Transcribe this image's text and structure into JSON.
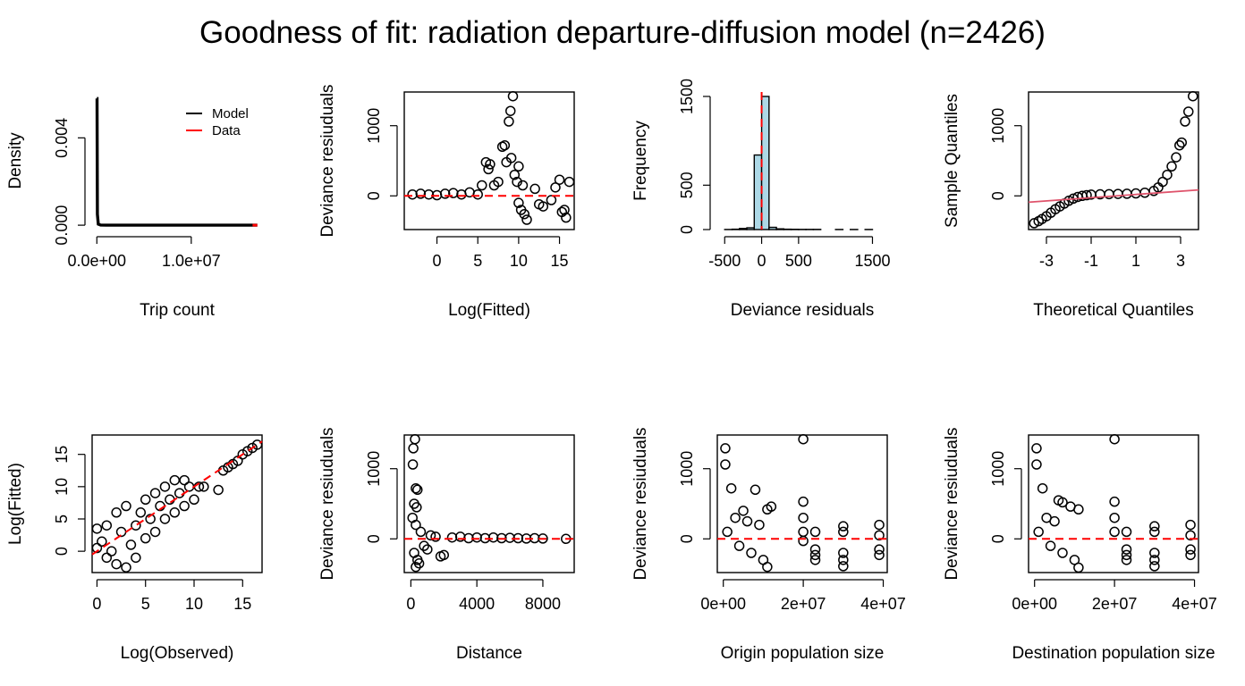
{
  "figure": {
    "title": "Goodness of fit: radiation departure-diffusion model (n=2426)"
  },
  "colors": {
    "ink": "#000000",
    "ref": "#ff0000",
    "hist_fill": "#add8e6",
    "qq_line": "#df536b"
  },
  "chart_data": [
    {
      "id": "density",
      "type": "line",
      "xlabel": "Trip count",
      "ylabel": "Density",
      "xlim": [
        -500000.0,
        17500000.0
      ],
      "ylim": [
        -0.0002,
        0.0061
      ],
      "xticks": [
        {
          "v": 0,
          "label": "0.0e+00"
        },
        {
          "v": 10000000.0,
          "label": "1.0e+07"
        }
      ],
      "yticks": [
        {
          "v": 0,
          "label": "0.000"
        },
        {
          "v": 0.004,
          "label": "0.004"
        }
      ],
      "legend": {
        "position": "top-right",
        "entries": [
          {
            "name": "Model",
            "color": "#000000"
          },
          {
            "name": "Data",
            "color": "#ff0000"
          }
        ]
      },
      "series": [
        {
          "name": "Model",
          "x": [
            0,
            20000,
            60000,
            150000,
            400000,
            1000000,
            17000000
          ],
          "y": [
            0.0058,
            0.0058,
            0.0005,
            5e-05,
            1e-05,
            2e-06,
            5e-07
          ]
        },
        {
          "name": "Data",
          "x": [
            16500000,
            17000000
          ],
          "y": [
            1e-06,
            1e-06
          ]
        }
      ]
    },
    {
      "id": "resid_vs_fitted",
      "type": "scatter",
      "xlabel": "Log(Fitted)",
      "ylabel": "Deviance resiuduals",
      "xlim": [
        -4,
        16.8
      ],
      "ylim": [
        -480,
        1480
      ],
      "xticks": [
        {
          "v": 0,
          "label": "0"
        },
        {
          "v": 5,
          "label": "5"
        },
        {
          "v": 10,
          "label": "10"
        },
        {
          "v": 15,
          "label": "15"
        }
      ],
      "yticks": [
        {
          "v": 0,
          "label": "0"
        },
        {
          "v": 1000,
          "label": "1000"
        }
      ],
      "reference_line": {
        "orientation": "horizontal",
        "value": 0,
        "style": "dashed",
        "color": "#ff0000"
      },
      "points": [
        [
          -3,
          20
        ],
        [
          -2,
          30
        ],
        [
          -1,
          20
        ],
        [
          0,
          10
        ],
        [
          1,
          30
        ],
        [
          2,
          40
        ],
        [
          3,
          20
        ],
        [
          4,
          50
        ],
        [
          5,
          20
        ],
        [
          5.5,
          150
        ],
        [
          6,
          480
        ],
        [
          6.3,
          380
        ],
        [
          6.5,
          450
        ],
        [
          7,
          150
        ],
        [
          7.5,
          200
        ],
        [
          8,
          700
        ],
        [
          8.3,
          720
        ],
        [
          8.5,
          480
        ],
        [
          8.8,
          1060
        ],
        [
          9,
          1210
        ],
        [
          9.3,
          1420
        ],
        [
          9.1,
          540
        ],
        [
          9.5,
          300
        ],
        [
          9.8,
          200
        ],
        [
          10,
          420
        ],
        [
          10,
          -100
        ],
        [
          10.3,
          -200
        ],
        [
          10.7,
          -260
        ],
        [
          11,
          -340
        ],
        [
          10.5,
          150
        ],
        [
          12,
          100
        ],
        [
          12.5,
          -120
        ],
        [
          13,
          -150
        ],
        [
          14,
          -60
        ],
        [
          14.5,
          120
        ],
        [
          15,
          230
        ],
        [
          15.3,
          -230
        ],
        [
          15.6,
          -200
        ],
        [
          15.8,
          -310
        ],
        [
          16.2,
          200
        ]
      ]
    },
    {
      "id": "resid_hist",
      "type": "bar",
      "xlabel": "Deviance residuals",
      "ylabel": "Frequency",
      "xlim": [
        -600,
        1700
      ],
      "ylim": [
        0,
        1550
      ],
      "xticks": [
        {
          "v": -500,
          "label": "-500"
        },
        {
          "v": 0,
          "label": "0"
        },
        {
          "v": 500,
          "label": "500"
        },
        {
          "v": 1500,
          "label": "1500"
        }
      ],
      "yticks": [
        {
          "v": 0,
          "label": "0"
        },
        {
          "v": 500,
          "label": "500"
        },
        {
          "v": 1500,
          "label": "1500"
        }
      ],
      "reference_line": {
        "orientation": "vertical",
        "value": 0,
        "style": "dashed",
        "color": "#ff0000"
      },
      "bins": [
        [
          -500,
          -400,
          1
        ],
        [
          -400,
          -300,
          4
        ],
        [
          -300,
          -200,
          12
        ],
        [
          -200,
          -100,
          20
        ],
        [
          -100,
          0,
          840
        ],
        [
          0,
          100,
          1500
        ],
        [
          100,
          200,
          25
        ],
        [
          200,
          300,
          8
        ],
        [
          300,
          400,
          4
        ],
        [
          400,
          500,
          3
        ],
        [
          500,
          600,
          2
        ],
        [
          600,
          700,
          2
        ],
        [
          700,
          800,
          2
        ],
        [
          1000,
          1100,
          1
        ],
        [
          1200,
          1300,
          1
        ],
        [
          1400,
          1500,
          1
        ]
      ]
    },
    {
      "id": "qq",
      "type": "scatter",
      "xlabel": "Theoretical Quantiles",
      "ylabel": "Sample Quantiles",
      "xlim": [
        -3.8,
        3.8
      ],
      "ylim": [
        -480,
        1480
      ],
      "xticks": [
        {
          "v": -3,
          "label": "-3"
        },
        {
          "v": -1,
          "label": "-1"
        },
        {
          "v": 1,
          "label": "1"
        },
        {
          "v": 3,
          "label": "3"
        }
      ],
      "yticks": [
        {
          "v": 0,
          "label": "0"
        },
        {
          "v": 1000,
          "label": "1000"
        }
      ],
      "qq_line": {
        "intercept": -3,
        "slope": 23,
        "color": "#df536b"
      },
      "points": [
        [
          -3.55,
          -390
        ],
        [
          -3.35,
          -360
        ],
        [
          -3.2,
          -330
        ],
        [
          -3.0,
          -290
        ],
        [
          -2.8,
          -240
        ],
        [
          -2.6,
          -190
        ],
        [
          -2.4,
          -150
        ],
        [
          -2.2,
          -110
        ],
        [
          -2.0,
          -70
        ],
        [
          -1.8,
          -40
        ],
        [
          -1.6,
          -15
        ],
        [
          -1.4,
          0
        ],
        [
          -1.2,
          10
        ],
        [
          -1.0,
          18
        ],
        [
          -0.6,
          22
        ],
        [
          -0.2,
          25
        ],
        [
          0.2,
          28
        ],
        [
          0.6,
          30
        ],
        [
          1.0,
          35
        ],
        [
          1.4,
          45
        ],
        [
          1.8,
          70
        ],
        [
          2.0,
          120
        ],
        [
          2.2,
          200
        ],
        [
          2.4,
          300
        ],
        [
          2.6,
          420
        ],
        [
          2.8,
          550
        ],
        [
          2.95,
          720
        ],
        [
          3.05,
          760
        ],
        [
          3.2,
          1060
        ],
        [
          3.35,
          1200
        ],
        [
          3.55,
          1420
        ]
      ]
    },
    {
      "id": "fitted_vs_observed",
      "type": "scatter",
      "xlabel": "Log(Observed)",
      "ylabel": "Log(Fitted)",
      "xlim": [
        -0.5,
        17
      ],
      "ylim": [
        -3.3,
        18
      ],
      "xticks": [
        {
          "v": 0,
          "label": "0"
        },
        {
          "v": 5,
          "label": "5"
        },
        {
          "v": 10,
          "label": "10"
        },
        {
          "v": 15,
          "label": "15"
        }
      ],
      "yticks": [
        {
          "v": 0,
          "label": "0"
        },
        {
          "v": 5,
          "label": "5"
        },
        {
          "v": 10,
          "label": "10"
        },
        {
          "v": 15,
          "label": "15"
        }
      ],
      "reference_line": {
        "orientation": "diagonal",
        "from": [
          -0.5,
          -0.5
        ],
        "to": [
          17,
          17
        ],
        "style": "dashed",
        "color": "#ff0000"
      },
      "points": [
        [
          0,
          3.5
        ],
        [
          0,
          0.5
        ],
        [
          0.5,
          1.5
        ],
        [
          1,
          -1
        ],
        [
          1,
          4
        ],
        [
          1.5,
          0
        ],
        [
          2,
          -2
        ],
        [
          2,
          6
        ],
        [
          2.5,
          3
        ],
        [
          3,
          -2.5
        ],
        [
          3,
          7
        ],
        [
          3.5,
          1
        ],
        [
          4,
          4
        ],
        [
          4,
          -1
        ],
        [
          4.5,
          6
        ],
        [
          5,
          2
        ],
        [
          5,
          8
        ],
        [
          5.5,
          5
        ],
        [
          6,
          3
        ],
        [
          6,
          9
        ],
        [
          6.5,
          7
        ],
        [
          7,
          5
        ],
        [
          7,
          10
        ],
        [
          7.5,
          8
        ],
        [
          8,
          6
        ],
        [
          8,
          11
        ],
        [
          8.5,
          9
        ],
        [
          9,
          7
        ],
        [
          9,
          11
        ],
        [
          9.5,
          10
        ],
        [
          10,
          8
        ],
        [
          10.5,
          10
        ],
        [
          11,
          10
        ],
        [
          12.5,
          9.5
        ],
        [
          13,
          12.5
        ],
        [
          13.5,
          13
        ],
        [
          14,
          13.5
        ],
        [
          14.5,
          14
        ],
        [
          15,
          15
        ],
        [
          15.5,
          15.5
        ],
        [
          16,
          16
        ],
        [
          16.5,
          16.5
        ]
      ]
    },
    {
      "id": "resid_vs_distance",
      "type": "scatter",
      "xlabel": "Distance",
      "ylabel": "Deviance resiuduals",
      "xlim": [
        -400,
        9900
      ],
      "ylim": [
        -480,
        1480
      ],
      "xticks": [
        {
          "v": 0,
          "label": "0"
        },
        {
          "v": 4000,
          "label": "4000"
        },
        {
          "v": 8000,
          "label": "8000"
        }
      ],
      "yticks": [
        {
          "v": 0,
          "label": "0"
        },
        {
          "v": 1000,
          "label": "1000"
        }
      ],
      "reference_line": {
        "orientation": "horizontal",
        "value": 0,
        "style": "dashed",
        "color": "#ff0000"
      },
      "points": [
        [
          150,
          1290
        ],
        [
          250,
          1420
        ],
        [
          120,
          1060
        ],
        [
          300,
          720
        ],
        [
          400,
          700
        ],
        [
          200,
          500
        ],
        [
          350,
          450
        ],
        [
          100,
          300
        ],
        [
          300,
          200
        ],
        [
          200,
          -200
        ],
        [
          400,
          -300
        ],
        [
          300,
          -400
        ],
        [
          500,
          -350
        ],
        [
          600,
          100
        ],
        [
          800,
          -100
        ],
        [
          1000,
          -150
        ],
        [
          1200,
          50
        ],
        [
          1500,
          30
        ],
        [
          1800,
          -250
        ],
        [
          2000,
          -230
        ],
        [
          2500,
          20
        ],
        [
          3000,
          30
        ],
        [
          3500,
          10
        ],
        [
          4000,
          20
        ],
        [
          4500,
          10
        ],
        [
          5000,
          20
        ],
        [
          5500,
          10
        ],
        [
          6000,
          15
        ],
        [
          6500,
          10
        ],
        [
          7000,
          5
        ],
        [
          7500,
          10
        ],
        [
          8000,
          5
        ],
        [
          9400,
          0
        ]
      ]
    },
    {
      "id": "resid_vs_origin_pop",
      "type": "scatter",
      "xlabel": "Origin population size",
      "ylabel": "Deviance resiuduals",
      "xlim": [
        -1500000.0,
        41000000.0
      ],
      "ylim": [
        -480,
        1480
      ],
      "xticks": [
        {
          "v": 0,
          "label": "0e+00"
        },
        {
          "v": 20000000.0,
          "label": "2e+07"
        },
        {
          "v": 40000000.0,
          "label": "4e+07"
        }
      ],
      "yticks": [
        {
          "v": 0,
          "label": "0"
        },
        {
          "v": 1000,
          "label": "1000"
        }
      ],
      "reference_line": {
        "orientation": "horizontal",
        "value": 0,
        "style": "dashed",
        "color": "#ff0000"
      },
      "points": [
        [
          500000.0,
          1290
        ],
        [
          500000.0,
          1060
        ],
        [
          2000000.0,
          720
        ],
        [
          8000000.0,
          700
        ],
        [
          11000000.0,
          420
        ],
        [
          12000000.0,
          460
        ],
        [
          5000000.0,
          400
        ],
        [
          3000000.0,
          300
        ],
        [
          6000000.0,
          250
        ],
        [
          9000000.0,
          200
        ],
        [
          1000000.0,
          100
        ],
        [
          4000000.0,
          -100
        ],
        [
          7000000.0,
          -200
        ],
        [
          10000000.0,
          -300
        ],
        [
          11000000.0,
          -400
        ],
        [
          20000000.0,
          1420
        ],
        [
          20000000.0,
          530
        ],
        [
          20000000.0,
          300
        ],
        [
          20000000.0,
          100
        ],
        [
          20000000.0,
          -30
        ],
        [
          23000000.0,
          100
        ],
        [
          23000000.0,
          -150
        ],
        [
          23000000.0,
          -230
        ],
        [
          23000000.0,
          -300
        ],
        [
          30000000.0,
          180
        ],
        [
          30000000.0,
          100
        ],
        [
          30000000.0,
          -200
        ],
        [
          30000000.0,
          -300
        ],
        [
          30000000.0,
          -390
        ],
        [
          39000000.0,
          200
        ],
        [
          39000000.0,
          50
        ],
        [
          39000000.0,
          -150
        ],
        [
          39000000.0,
          -230
        ]
      ]
    },
    {
      "id": "resid_vs_dest_pop",
      "type": "scatter",
      "xlabel": "Destination population size",
      "ylabel": "Deviance resiuduals",
      "xlim": [
        -1500000.0,
        41000000.0
      ],
      "ylim": [
        -480,
        1480
      ],
      "xticks": [
        {
          "v": 0,
          "label": "0e+00"
        },
        {
          "v": 20000000.0,
          "label": "2e+07"
        },
        {
          "v": 40000000.0,
          "label": "4e+07"
        }
      ],
      "yticks": [
        {
          "v": 0,
          "label": "0"
        },
        {
          "v": 1000,
          "label": "1000"
        }
      ],
      "reference_line": {
        "orientation": "horizontal",
        "value": 0,
        "style": "dashed",
        "color": "#ff0000"
      },
      "points": [
        [
          500000.0,
          1290
        ],
        [
          500000.0,
          1060
        ],
        [
          2000000.0,
          720
        ],
        [
          6000000.0,
          550
        ],
        [
          7000000.0,
          520
        ],
        [
          9000000.0,
          460
        ],
        [
          11000000.0,
          420
        ],
        [
          3000000.0,
          300
        ],
        [
          5000000.0,
          250
        ],
        [
          1000000.0,
          100
        ],
        [
          4000000.0,
          -100
        ],
        [
          7000000.0,
          -200
        ],
        [
          10000000.0,
          -300
        ],
        [
          11000000.0,
          -410
        ],
        [
          20000000.0,
          1420
        ],
        [
          20000000.0,
          530
        ],
        [
          20000000.0,
          300
        ],
        [
          20000000.0,
          100
        ],
        [
          23000000.0,
          100
        ],
        [
          23000000.0,
          -150
        ],
        [
          23000000.0,
          -230
        ],
        [
          23000000.0,
          -300
        ],
        [
          30000000.0,
          180
        ],
        [
          30000000.0,
          100
        ],
        [
          30000000.0,
          -200
        ],
        [
          30000000.0,
          -300
        ],
        [
          30000000.0,
          -390
        ],
        [
          39000000.0,
          200
        ],
        [
          39000000.0,
          50
        ],
        [
          39000000.0,
          -150
        ],
        [
          39000000.0,
          -230
        ]
      ]
    }
  ]
}
